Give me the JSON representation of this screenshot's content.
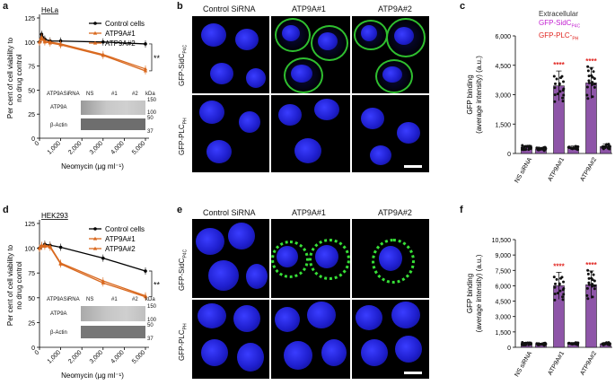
{
  "panels": {
    "a": {
      "letter": "a",
      "cell_line": "HeLa",
      "blot_header": "ATP9ASiRNA",
      "lanes": [
        "NS",
        "#1",
        "#2"
      ],
      "kda": "kDa",
      "bands": [
        "ATP9A",
        "β-Actin"
      ],
      "band_kda": [
        "150",
        "100",
        "50",
        "37"
      ],
      "significance": "**"
    },
    "b": {
      "letter": "b",
      "cols": [
        "Control SiRNA",
        "ATP9A#1",
        "ATP9A#2"
      ],
      "rows": [
        "GFP-SidC",
        "GFP-PLC"
      ],
      "row_subs": [
        "P4C",
        "PH"
      ]
    },
    "c": {
      "letter": "c",
      "ylabel": "GFP binding (average intensity) (a.u.)",
      "legend_title": "Extracellular",
      "legend": [
        {
          "name": "GFP-SidC",
          "sub": "P4C",
          "color": "#c21fd1"
        },
        {
          "name": "GFP-PLC-",
          "sub": "PH",
          "color": "#e0241f"
        }
      ],
      "stars": "****"
    },
    "d": {
      "letter": "d",
      "cell_line": "HEK293",
      "blot_header": "ATP9ASiRNA",
      "lanes": [
        "NS",
        "#1",
        "#2"
      ],
      "kda": "kDa",
      "bands": [
        "ATP9A",
        "β-Actin"
      ],
      "band_kda": [
        "150",
        "100",
        "50",
        "37"
      ],
      "significance": "**"
    },
    "e": {
      "letter": "e",
      "cols": [
        "Control SiRNA",
        "ATP9A#1",
        "ATP9A#2"
      ],
      "rows": [
        "GFP-SidC",
        "GFP-PLC"
      ],
      "row_subs": [
        "P4C",
        "PH"
      ]
    },
    "f": {
      "letter": "f",
      "ylabel": "GFP binding (average intensity) (a.u.)",
      "stars": "****"
    }
  },
  "chart_data": [
    {
      "id": "a",
      "type": "line",
      "xlabel": "Neomycin (µg ml⁻¹)",
      "ylabel": "Per cent of cell viability to no drug control",
      "xlim": [
        0,
        5000
      ],
      "ylim": [
        0,
        125
      ],
      "xticks": [
        0,
        1000,
        2000,
        3000,
        4000,
        5000
      ],
      "xtick_labels": [
        "0",
        "1,000",
        "2,000",
        "3,000",
        "4,000",
        "5,000"
      ],
      "yticks": [
        0,
        25,
        50,
        75,
        100,
        125
      ],
      "series": [
        {
          "name": "Control cells",
          "color": "#000000",
          "x": [
            0,
            100,
            250,
            500,
            1000,
            3000,
            5000
          ],
          "y": [
            100,
            108,
            103,
            101,
            101,
            100,
            98
          ]
        },
        {
          "name": "ATP9A#1",
          "color": "#d9691f",
          "x": [
            0,
            100,
            250,
            500,
            1000,
            3000,
            5000
          ],
          "y": [
            100,
            105,
            101,
            100,
            98,
            87,
            72
          ]
        },
        {
          "name": "ATP9A#2",
          "color": "#d9691f",
          "x": [
            0,
            100,
            250,
            500,
            1000,
            3000,
            5000
          ],
          "y": [
            100,
            103,
            100,
            99,
            97,
            86,
            70
          ]
        }
      ]
    },
    {
      "id": "c",
      "type": "bar",
      "ylabel": "GFP binding (average intensity) (a.u.)",
      "ylim": [
        0,
        6000
      ],
      "yticks": [
        0,
        1500,
        3000,
        4500,
        6000
      ],
      "ytick_labels": [
        "0",
        "1,500",
        "3,000",
        "4,500",
        "6,000"
      ],
      "categories": [
        "NS siRNA",
        "ATP9A#1",
        "ATP9A#2"
      ],
      "series": [
        {
          "name": "GFP-SidC P4C",
          "color": "#8e55a8",
          "values": [
            300,
            3450,
            3600
          ]
        },
        {
          "name": "GFP-PLC-PH",
          "color": "#8e55a8",
          "values": [
            230,
            280,
            350
          ]
        }
      ]
    },
    {
      "id": "d",
      "type": "line",
      "xlabel": "Neomycin (µg ml⁻¹)",
      "ylabel": "Per cent of cell viability to no drug control",
      "xlim": [
        0,
        5000
      ],
      "ylim": [
        0,
        125
      ],
      "xticks": [
        0,
        1000,
        2000,
        3000,
        4000,
        5000
      ],
      "xtick_labels": [
        "0",
        "1,000",
        "2,000",
        "3,000",
        "4,000",
        "5,000"
      ],
      "yticks": [
        0,
        25,
        50,
        75,
        100,
        125
      ],
      "series": [
        {
          "name": "Control cells",
          "color": "#000000",
          "x": [
            0,
            100,
            250,
            500,
            1000,
            3000,
            5000
          ],
          "y": [
            100,
            102,
            104,
            103,
            101,
            90,
            77
          ]
        },
        {
          "name": "ATP9A#1",
          "color": "#d9691f",
          "x": [
            0,
            100,
            250,
            500,
            1000,
            3000,
            5000
          ],
          "y": [
            100,
            103,
            103,
            102,
            85,
            67,
            52
          ]
        },
        {
          "name": "ATP9A#2",
          "color": "#d9691f",
          "x": [
            0,
            100,
            250,
            500,
            1000,
            3000,
            5000
          ],
          "y": [
            100,
            102,
            102,
            101,
            84,
            65,
            51
          ]
        }
      ]
    },
    {
      "id": "f",
      "type": "bar",
      "ylabel": "GFP binding (average intensity) (a.u.)",
      "ylim": [
        0,
        10500
      ],
      "yticks": [
        0,
        1500,
        3000,
        4500,
        6000,
        7500,
        9000,
        10500
      ],
      "ytick_labels": [
        "0",
        "1,500",
        "3,000",
        "4,500",
        "6,000",
        "7,500",
        "9,000",
        "10,500"
      ],
      "categories": [
        "NS siRNA",
        "ATP9A#1",
        "ATP9A#2"
      ],
      "series": [
        {
          "name": "GFP-SidC P4C",
          "color": "#8e55a8",
          "values": [
            350,
            6000,
            6100
          ]
        },
        {
          "name": "GFP-PLC-PH",
          "color": "#8e55a8",
          "values": [
            300,
            350,
            350
          ]
        }
      ]
    }
  ]
}
